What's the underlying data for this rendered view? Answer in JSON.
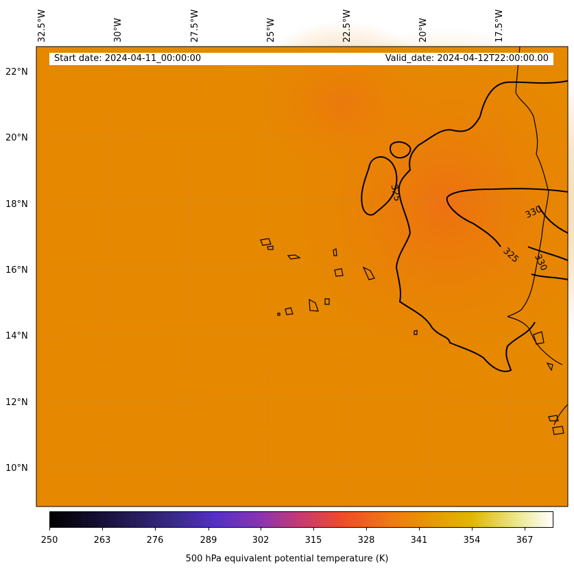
{
  "map": {
    "start_date": "Start date: 2024-04-11_00:00:00",
    "valid_date": "Valid_date: 2024-04-12T22:00:00.00",
    "longitude_labels": [
      "32.5°W",
      "30°W",
      "27.5°W",
      "25°W",
      "22.5°W",
      "20°W",
      "17.5°W"
    ],
    "latitude_labels": [
      "22°N",
      "20°N",
      "18°N",
      "16°N",
      "14°N",
      "12°N",
      "10°N"
    ],
    "contour_labels": [
      "325",
      "330",
      "325",
      "330"
    ],
    "colors": {
      "field": "#e88a00",
      "field_warm": "#ee7a10",
      "coast": "#000000"
    }
  },
  "colorbar": {
    "ticks": [
      "250",
      "263",
      "276",
      "289",
      "302",
      "315",
      "328",
      "341",
      "354",
      "367"
    ],
    "label": "500 hPa equivalent potential temperature (K)",
    "range": [
      250,
      373
    ]
  }
}
